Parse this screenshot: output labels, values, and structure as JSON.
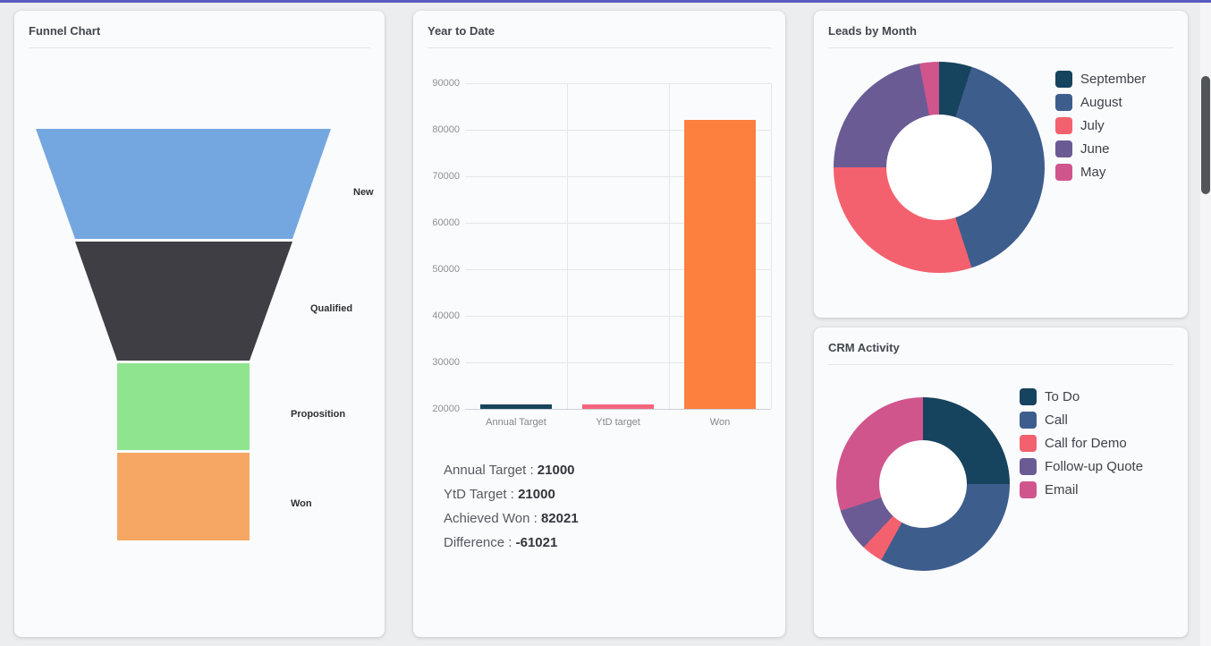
{
  "page": {
    "background": "#ebedef",
    "accent_bar_color": "#5b5bc0"
  },
  "chart_data": [
    {
      "type": "funnel",
      "title": "Funnel Chart",
      "categories": [
        "New",
        "Qualified",
        "Proposition",
        "Won"
      ],
      "legend_position": "none"
    },
    {
      "type": "bar",
      "title": "Year to Date",
      "categories": [
        "Annual Target",
        "YtD target",
        "Won"
      ],
      "values": [
        21000,
        21000,
        82021
      ],
      "ylim": [
        20000,
        90000
      ],
      "ytick_step": 10000,
      "grid": true,
      "colors": [
        "#17455c",
        "#f4657c",
        "#fc803e"
      ]
    },
    {
      "type": "pie",
      "title": "Leads by Month",
      "categories": [
        "September",
        "August",
        "July",
        "June",
        "May"
      ],
      "values_pct_estimated": [
        5,
        40,
        30,
        22,
        3
      ],
      "legend_position": "right"
    },
    {
      "type": "pie",
      "title": "CRM Activity",
      "categories": [
        "To Do",
        "Call",
        "Call for Demo",
        "Follow-up Quote",
        "Email"
      ],
      "values_pct_estimated": [
        25,
        33,
        4,
        8,
        30
      ],
      "legend_position": "right"
    }
  ],
  "funnel_card": {
    "title": "Funnel Chart",
    "stages": [
      {
        "label": "New",
        "color": "#74a7e0"
      },
      {
        "label": "Qualified",
        "color": "#3f3e45"
      },
      {
        "label": "Proposition",
        "color": "#8fe48f"
      },
      {
        "label": "Won",
        "color": "#f5a763"
      }
    ]
  },
  "ytd_card": {
    "title": "Year to Date",
    "chart": {
      "categories": [
        "Annual Target",
        "YtD target",
        "Won"
      ],
      "values": [
        21000,
        21000,
        82021
      ],
      "colors": [
        "#17455c",
        "#f4657c",
        "#fc803e"
      ],
      "y_min": 20000,
      "y_max": 90000,
      "y_step": 10000
    },
    "summary": [
      {
        "label": "Annual Target :",
        "value": "21000"
      },
      {
        "label": "YtD Target :",
        "value": "21000"
      },
      {
        "label": "Achieved Won :",
        "value": "82021"
      },
      {
        "label": "Difference :",
        "value": "-61021"
      }
    ]
  },
  "leads_card": {
    "title": "Leads by Month",
    "slices": [
      {
        "label": "September",
        "value": 5,
        "color": "#16435d"
      },
      {
        "label": "August",
        "value": 40,
        "color": "#3d5d8d"
      },
      {
        "label": "July",
        "value": 30,
        "color": "#f4616e"
      },
      {
        "label": "June",
        "value": 22,
        "color": "#6a5b95"
      },
      {
        "label": "May",
        "value": 3,
        "color": "#d0558d"
      }
    ]
  },
  "crm_card": {
    "title": "CRM Activity",
    "slices": [
      {
        "label": "To Do",
        "value": 25,
        "color": "#16435d"
      },
      {
        "label": "Call",
        "value": 33,
        "color": "#3d5d8d"
      },
      {
        "label": "Call for Demo",
        "value": 4,
        "color": "#f4616e"
      },
      {
        "label": "Follow-up Quote",
        "value": 8,
        "color": "#6a5b95"
      },
      {
        "label": "Email",
        "value": 30,
        "color": "#d0558d"
      }
    ]
  }
}
